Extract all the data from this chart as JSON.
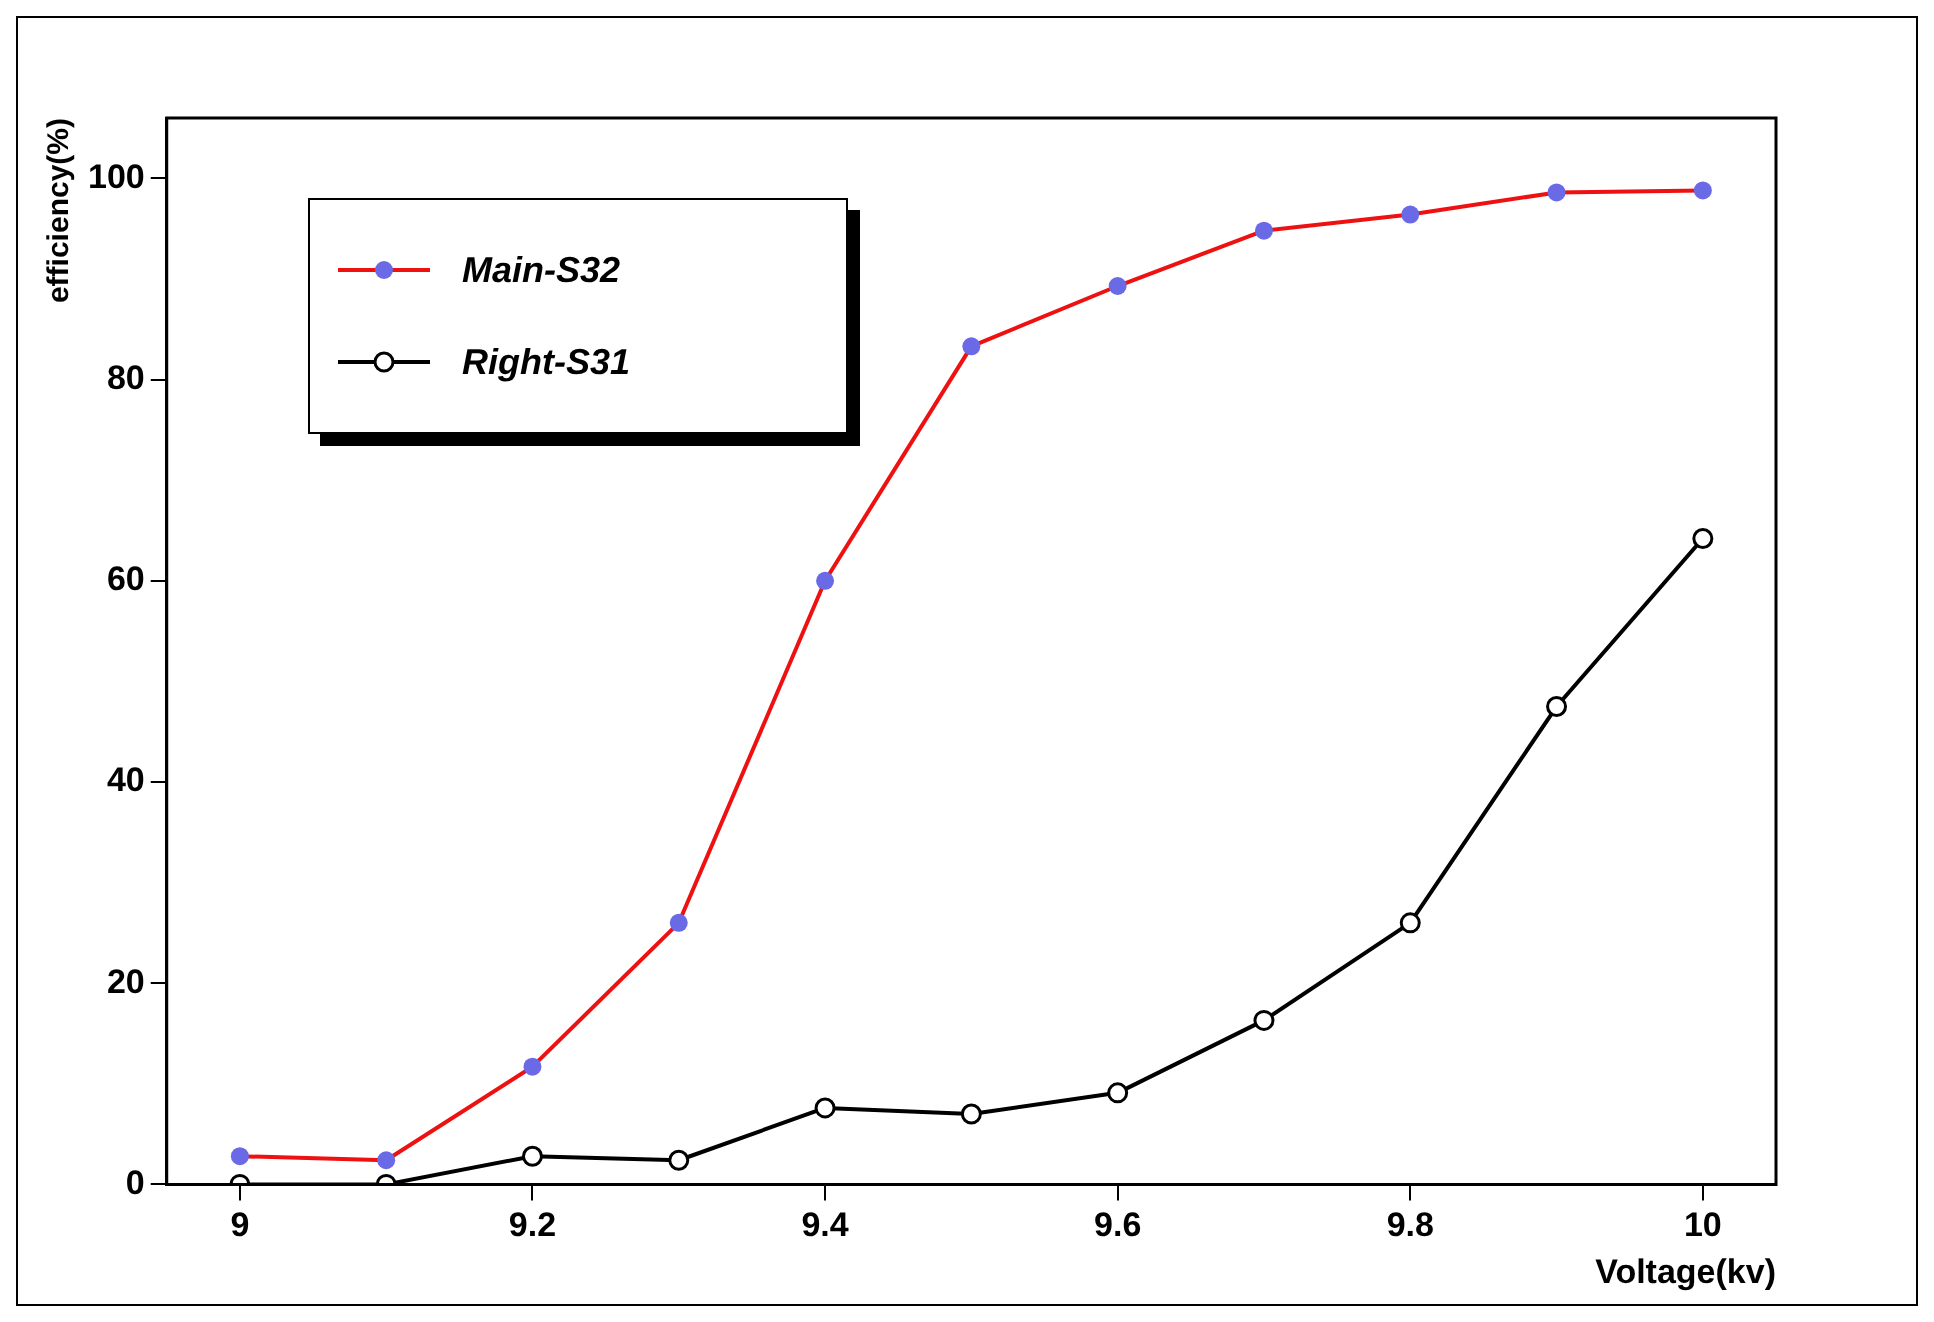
{
  "chart_data": {
    "type": "line",
    "xlabel": "Voltage(kv)",
    "ylabel": "efficiency(%)",
    "x": [
      9,
      9.1,
      9.2,
      9.3,
      9.4,
      9.5,
      9.6,
      9.7,
      9.8,
      9.9,
      10
    ],
    "series": [
      {
        "name": "Main-S32",
        "color": "#ee1111",
        "colors": [
          "#6a6ae6",
          "#6a6ae6",
          "#6a6ae6",
          "#6a6ae6",
          "#6a6ae6",
          "#6a6ae6",
          "#6a6ae6",
          "#6a6ae6",
          "#6a6ae6",
          "#6a6ae6",
          "#6a6ae6"
        ],
        "values": [
          2.8,
          2.4,
          11.7,
          26,
          60,
          83.3,
          89.3,
          94.8,
          96.4,
          98.6,
          98.8
        ]
      },
      {
        "name": "Right-S31",
        "color": "#000000",
        "values": [
          0,
          0,
          2.8,
          2.4,
          7.6,
          7,
          9.1,
          16.3,
          26,
          47.5,
          64.2
        ]
      }
    ],
    "xlim": [
      8.95,
      10.05
    ],
    "xticks": [
      9,
      9.2,
      9.4,
      9.6,
      9.8,
      10
    ],
    "ylim": [
      0,
      106
    ],
    "yticks": [
      0,
      20,
      40,
      60,
      80,
      100
    ],
    "grid": false,
    "legend": "top left",
    "marker": "circle",
    "line_style": "solid"
  }
}
